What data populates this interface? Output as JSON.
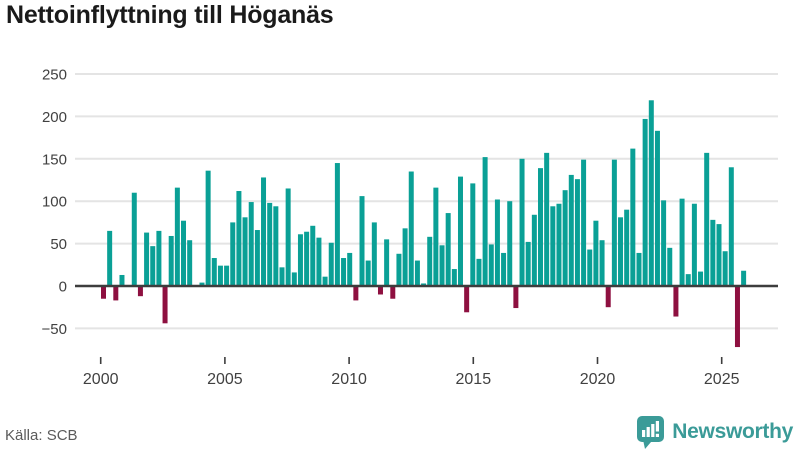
{
  "header": {
    "title": "Nettoinflyttning till Höganäs"
  },
  "footer": {
    "source": "Källa: SCB",
    "brand": "Newsworthy"
  },
  "chart_data": {
    "type": "bar",
    "title": "Nettoinflyttning till Höganäs",
    "xlabel": "",
    "ylabel": "",
    "frequency": "quarterly",
    "start": "2000 Q1",
    "x_tick_labels": [
      "2000",
      "2005",
      "2010",
      "2015",
      "2020",
      "2025"
    ],
    "y_ticks": [
      250,
      200,
      150,
      100,
      50,
      0,
      -50
    ],
    "y_tick_labels": [
      "250",
      "200",
      "150",
      "100",
      "50",
      "0",
      "−50"
    ],
    "ylim": [
      -78,
      255
    ],
    "grid": "horizontal",
    "legend": "none",
    "values": [
      -15,
      65,
      -17,
      13,
      0,
      110,
      -12,
      63,
      47,
      65,
      -44,
      59,
      116,
      77,
      54,
      0,
      4,
      136,
      33,
      24,
      24,
      75,
      112,
      81,
      99,
      66,
      128,
      98,
      94,
      22,
      115,
      16,
      61,
      64,
      71,
      57,
      11,
      51,
      145,
      33,
      39,
      -17,
      106,
      30,
      75,
      -10,
      55,
      -15,
      38,
      68,
      135,
      30,
      3,
      58,
      116,
      48,
      86,
      20,
      129,
      -31,
      121,
      32,
      152,
      49,
      102,
      39,
      100,
      -26,
      150,
      52,
      84,
      139,
      157,
      94,
      97,
      113,
      131,
      126,
      149,
      43,
      77,
      54,
      -25,
      149,
      81,
      90,
      162,
      39,
      197,
      219,
      183,
      101,
      45,
      -36,
      103,
      14,
      97,
      17,
      157,
      78,
      73,
      41,
      140,
      -72,
      18
    ],
    "colors": {
      "positive": "#0aa096",
      "negative": "#8e1040",
      "gridline": "#e4e4e4",
      "zero_line": "#3d3d3d",
      "axis_text": "#414141",
      "tick_mark": "#3d3d3d"
    }
  },
  "colors": {
    "background": "#ffffff",
    "title_text": "#1a1a1a",
    "source_text": "#5a5a5a",
    "brand_teal": "#3b9b98"
  },
  "icons": {
    "logo": "newsworthy-pin-barchart-icon"
  }
}
